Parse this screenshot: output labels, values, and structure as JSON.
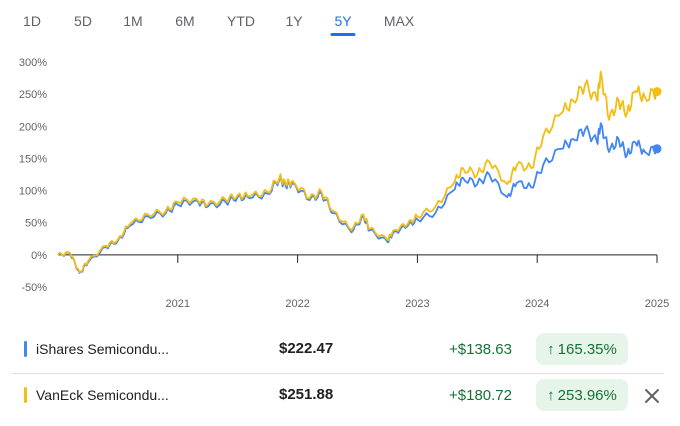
{
  "range_tabs": [
    {
      "label": "1D",
      "active": false
    },
    {
      "label": "5D",
      "active": false
    },
    {
      "label": "1M",
      "active": false
    },
    {
      "label": "6M",
      "active": false
    },
    {
      "label": "YTD",
      "active": false
    },
    {
      "label": "1Y",
      "active": false
    },
    {
      "label": "5Y",
      "active": true
    },
    {
      "label": "MAX",
      "active": false
    }
  ],
  "chart_data": {
    "type": "line",
    "title": "",
    "ylim": [
      -50,
      300
    ],
    "y_ticks": [
      "300%",
      "250%",
      "200%",
      "150%",
      "100%",
      "50%",
      "0%",
      "-50%"
    ],
    "x_ticks": [
      "2021",
      "2022",
      "2023",
      "2024",
      "2025"
    ],
    "grid": false,
    "baseline": 0,
    "series": [
      {
        "name": "iShares Semicondu...",
        "color": "#4285f4",
        "x": [
          2020.0,
          2020.1,
          2020.18,
          2020.25,
          2020.4,
          2020.5,
          2020.6,
          2020.75,
          2020.9,
          2021.0,
          2021.15,
          2021.25,
          2021.4,
          2021.5,
          2021.6,
          2021.75,
          2021.85,
          2021.9,
          2021.96,
          2022.1,
          2022.2,
          2022.3,
          2022.45,
          2022.55,
          2022.6,
          2022.75,
          2022.8,
          2022.92,
          2023.0,
          2023.15,
          2023.3,
          2023.38,
          2023.5,
          2023.6,
          2023.75,
          2023.83,
          2023.95,
          2024.05,
          2024.2,
          2024.3,
          2024.4,
          2024.5,
          2024.53,
          2024.6,
          2024.68,
          2024.75,
          2024.82,
          2024.9,
          2025.0
        ],
        "values": [
          0,
          2,
          -28,
          -12,
          12,
          22,
          45,
          60,
          65,
          78,
          85,
          75,
          82,
          90,
          88,
          95,
          118,
          107,
          112,
          85,
          95,
          65,
          35,
          60,
          38,
          20,
          35,
          45,
          55,
          65,
          100,
          120,
          110,
          125,
          90,
          112,
          105,
          140,
          165,
          180,
          195,
          175,
          205,
          160,
          180,
          155,
          175,
          160,
          165
        ]
      },
      {
        "name": "VanEck Semicondu...",
        "color": "#f2bd14",
        "x": [
          2020.0,
          2020.1,
          2020.18,
          2020.25,
          2020.4,
          2020.5,
          2020.6,
          2020.75,
          2020.9,
          2021.0,
          2021.15,
          2021.25,
          2021.4,
          2021.5,
          2021.6,
          2021.75,
          2021.85,
          2021.9,
          2021.96,
          2022.1,
          2022.2,
          2022.3,
          2022.45,
          2022.55,
          2022.6,
          2022.75,
          2022.8,
          2022.92,
          2023.0,
          2023.15,
          2023.3,
          2023.38,
          2023.5,
          2023.6,
          2023.75,
          2023.83,
          2023.95,
          2024.05,
          2024.2,
          2024.3,
          2024.4,
          2024.5,
          2024.53,
          2024.6,
          2024.68,
          2024.75,
          2024.82,
          2024.9,
          2025.0
        ],
        "values": [
          0,
          3,
          -27,
          -10,
          14,
          24,
          48,
          63,
          68,
          82,
          88,
          78,
          86,
          93,
          91,
          98,
          121,
          110,
          115,
          88,
          98,
          68,
          38,
          63,
          41,
          23,
          38,
          48,
          60,
          75,
          110,
          135,
          125,
          145,
          110,
          140,
          135,
          185,
          220,
          240,
          265,
          240,
          285,
          210,
          240,
          220,
          255,
          245,
          254
        ]
      }
    ]
  },
  "rows": [
    {
      "name": "iShares Semicondu...",
      "price": "$222.47",
      "change": "+$138.63",
      "pct": "165.35%",
      "color": "#4285f4"
    },
    {
      "name": "VanEck Semicondu...",
      "price": "$251.88",
      "change": "+$180.72",
      "pct": "253.96%",
      "color": "#f2bd14"
    }
  ],
  "icons": {
    "up_arrow": "arrow-up-icon",
    "close": "close-icon"
  },
  "colors": {
    "positive": "#137333",
    "positive_bg": "#e6f4ea",
    "accent": "#1a73e8"
  }
}
